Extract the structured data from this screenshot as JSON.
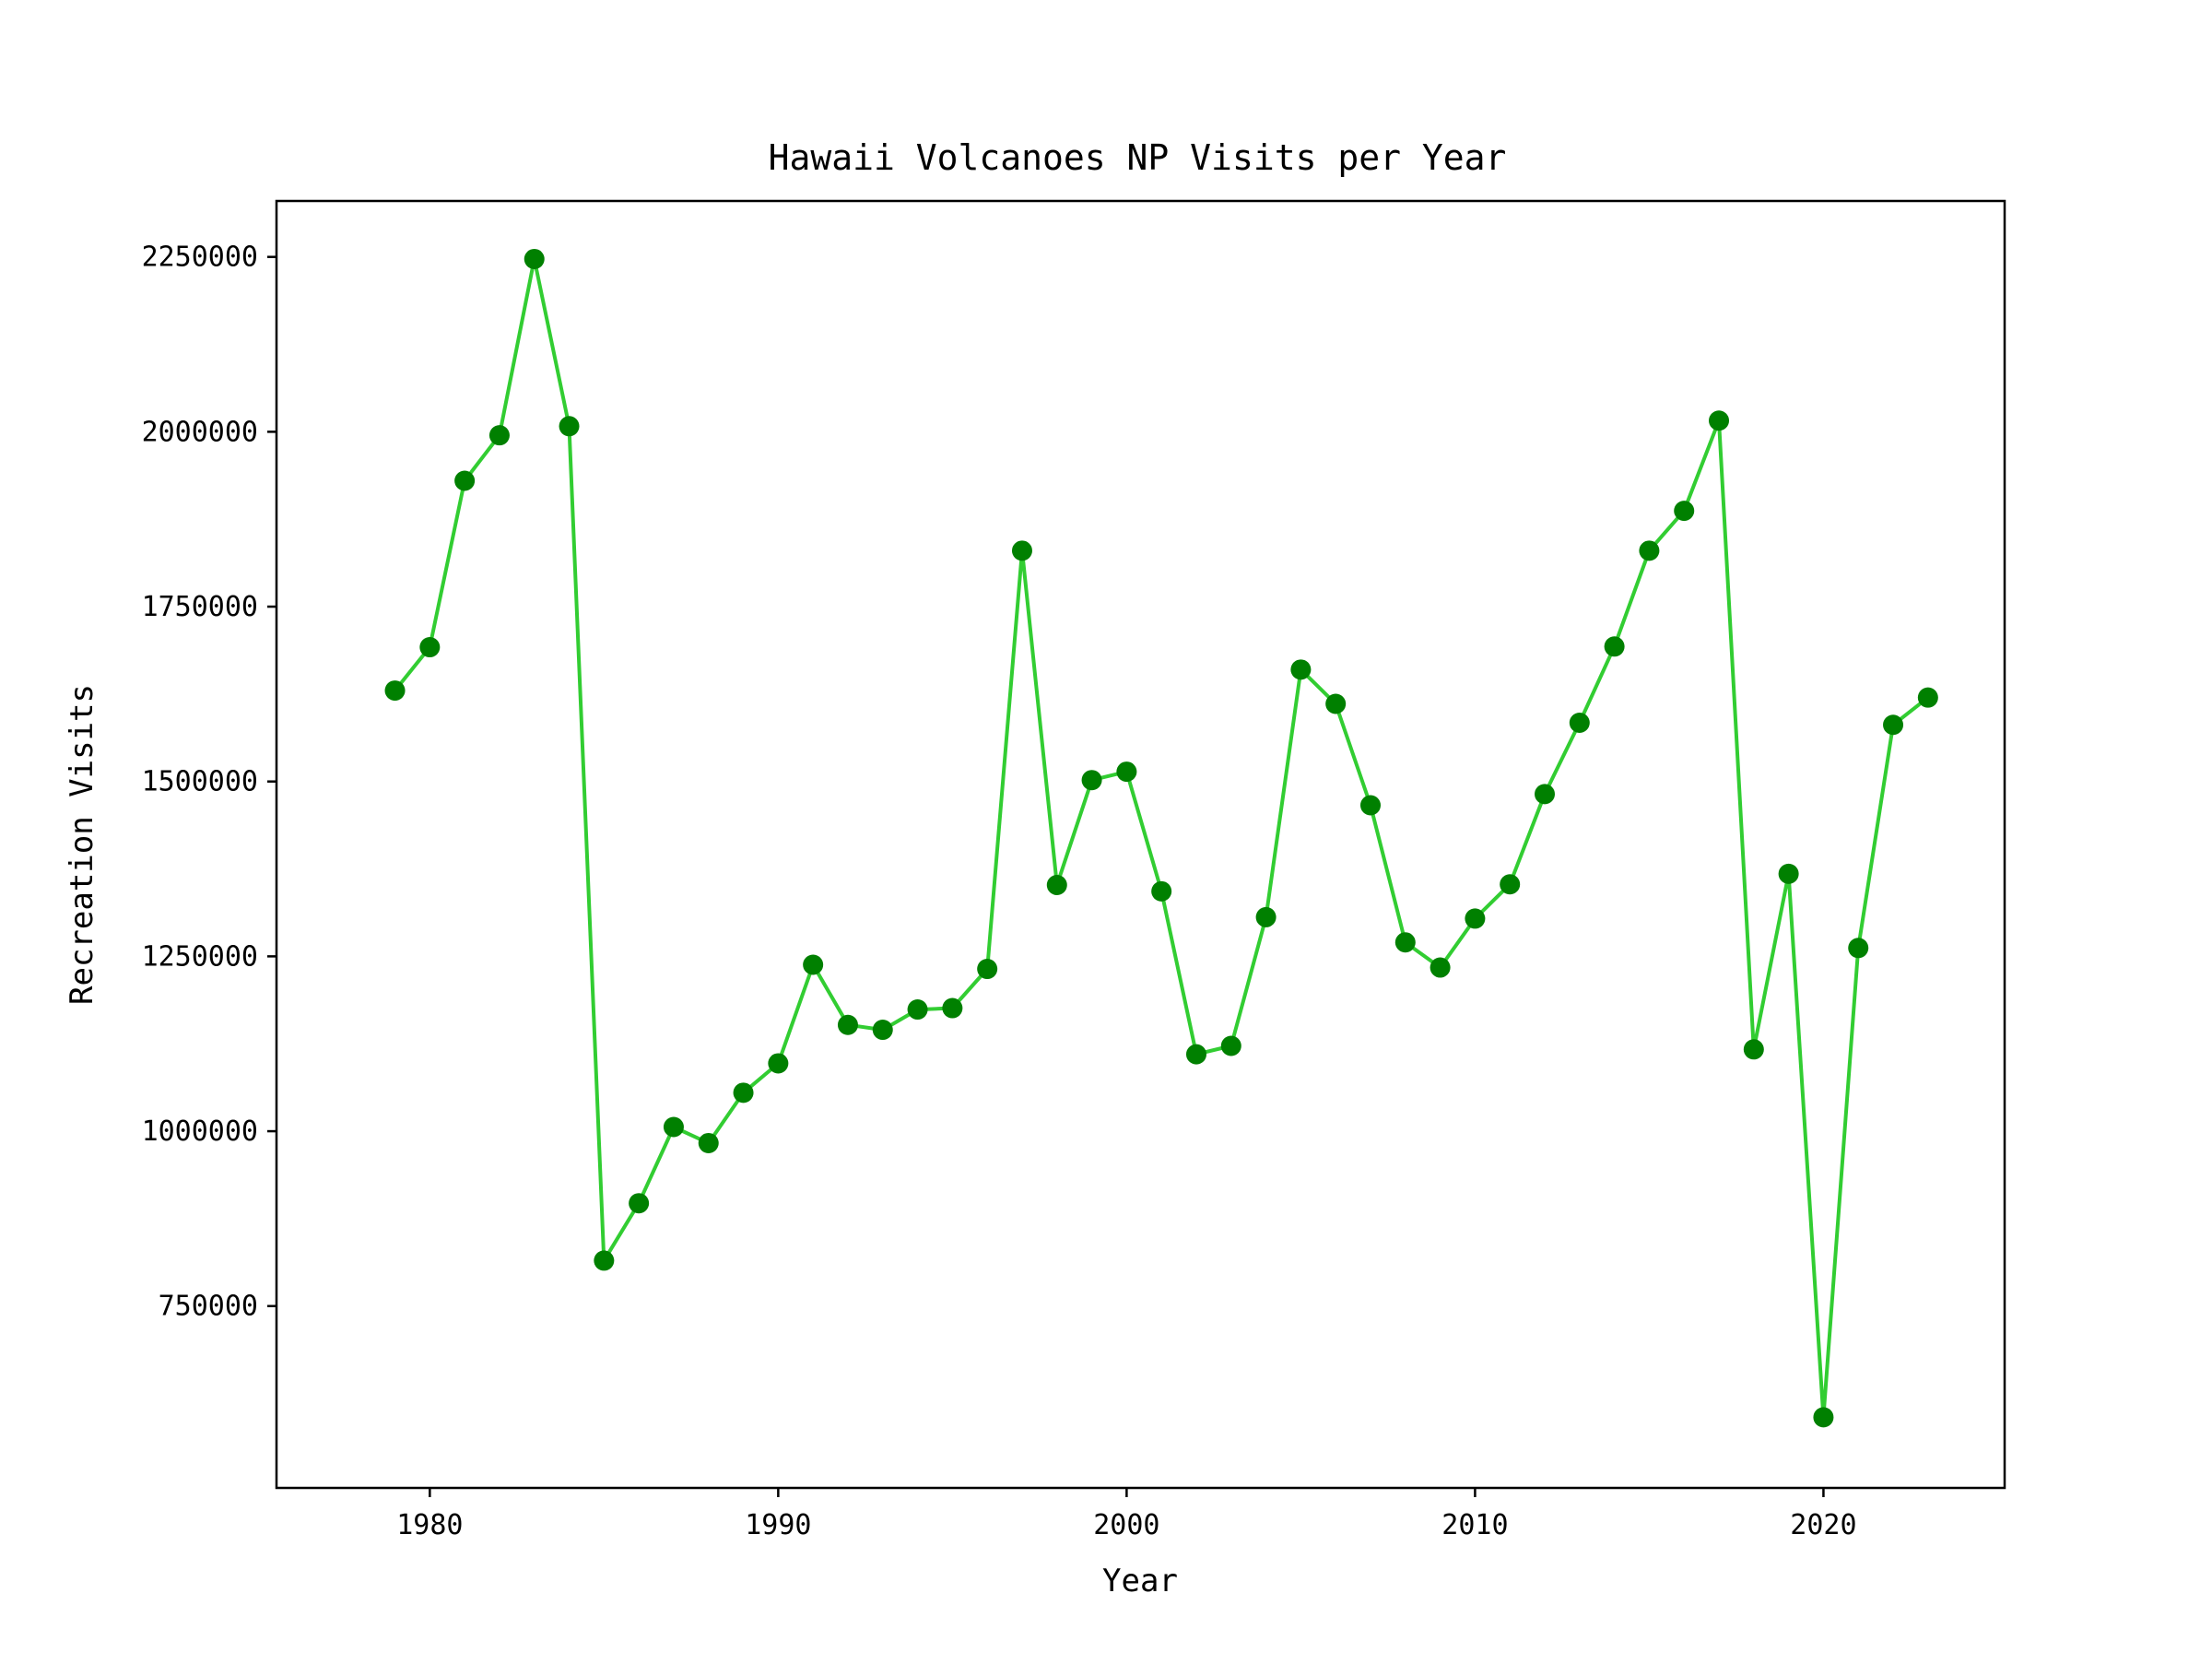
{
  "chart_data": {
    "type": "line",
    "title": "Hawaii Volcanoes NP Visits per Year",
    "xlabel": "Year",
    "ylabel": "Recreation Visits",
    "xlim": [
      1975.6,
      2025.2
    ],
    "ylim": [
      490000,
      2330000
    ],
    "xticks": [
      1980,
      1990,
      2000,
      2010,
      2020
    ],
    "xtick_labels": [
      "1980",
      "1990",
      "2000",
      "2010",
      "2020"
    ],
    "yticks": [
      750000,
      1000000,
      1250000,
      1500000,
      1750000,
      2000000,
      2250000
    ],
    "ytick_labels": [
      "750000",
      "1000000",
      "1250000",
      "1500000",
      "1750000",
      "2000000",
      "2250000"
    ],
    "grid": false,
    "legend": "none",
    "colors": {
      "line": "#32cd32",
      "marker": "#008000"
    },
    "series": [
      {
        "x": [
          1979,
          1980,
          1981,
          1982,
          1983,
          1984,
          1985,
          1986,
          1987,
          1988,
          1989,
          1990,
          1991,
          1992,
          1993,
          1994,
          1995,
          1996,
          1997,
          1998,
          1999,
          2000,
          2001,
          2002,
          2003,
          2004,
          2005,
          2006,
          2007,
          2008,
          2009,
          2010,
          2011,
          2012,
          2013,
          2014,
          2015,
          2016,
          2017,
          2018,
          2019,
          2020,
          2021,
          2022,
          2023
        ],
        "y": [
          1630000,
          1692000,
          1930000,
          1995000,
          2247000,
          2008000,
          815000,
          897000,
          1006000,
          983000,
          1055000,
          1097000,
          1238000,
          1152000,
          1145000,
          1174000,
          1176000,
          1232000,
          1830000,
          1352000,
          1502000,
          1514000,
          1343000,
          1110000,
          1122000,
          1306000,
          1660000,
          1611000,
          1466000,
          1270000,
          1234000,
          1304000,
          1353000,
          1482000,
          1584000,
          1693000,
          1830000,
          1887000,
          2016000,
          1117000,
          1368000,
          591000,
          1262000,
          1581000,
          1620000
        ]
      }
    ]
  }
}
